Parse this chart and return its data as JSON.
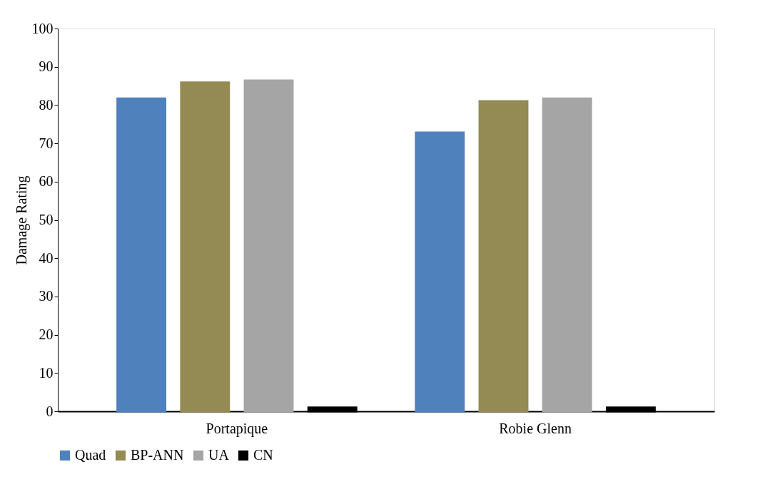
{
  "chart_data": {
    "type": "bar",
    "ylabel": "Damage Rating",
    "categories": [
      "Portapique",
      "Robie Glenn"
    ],
    "series": [
      {
        "name": "Quad",
        "color": "#4f81bd",
        "values": [
          81.7,
          72.8
        ]
      },
      {
        "name": "BP-ANN",
        "color": "#948a54",
        "values": [
          85.9,
          81.0
        ]
      },
      {
        "name": "UA",
        "color": "#a5a5a5",
        "values": [
          86.4,
          81.7
        ]
      },
      {
        "name": "CN",
        "color": "#000000",
        "values": [
          1,
          1
        ]
      }
    ],
    "ylim": [
      0,
      100
    ],
    "yticks": [
      0,
      10,
      20,
      30,
      40,
      50,
      60,
      70,
      80,
      90,
      100
    ],
    "grid": false,
    "legend": "bottom"
  }
}
